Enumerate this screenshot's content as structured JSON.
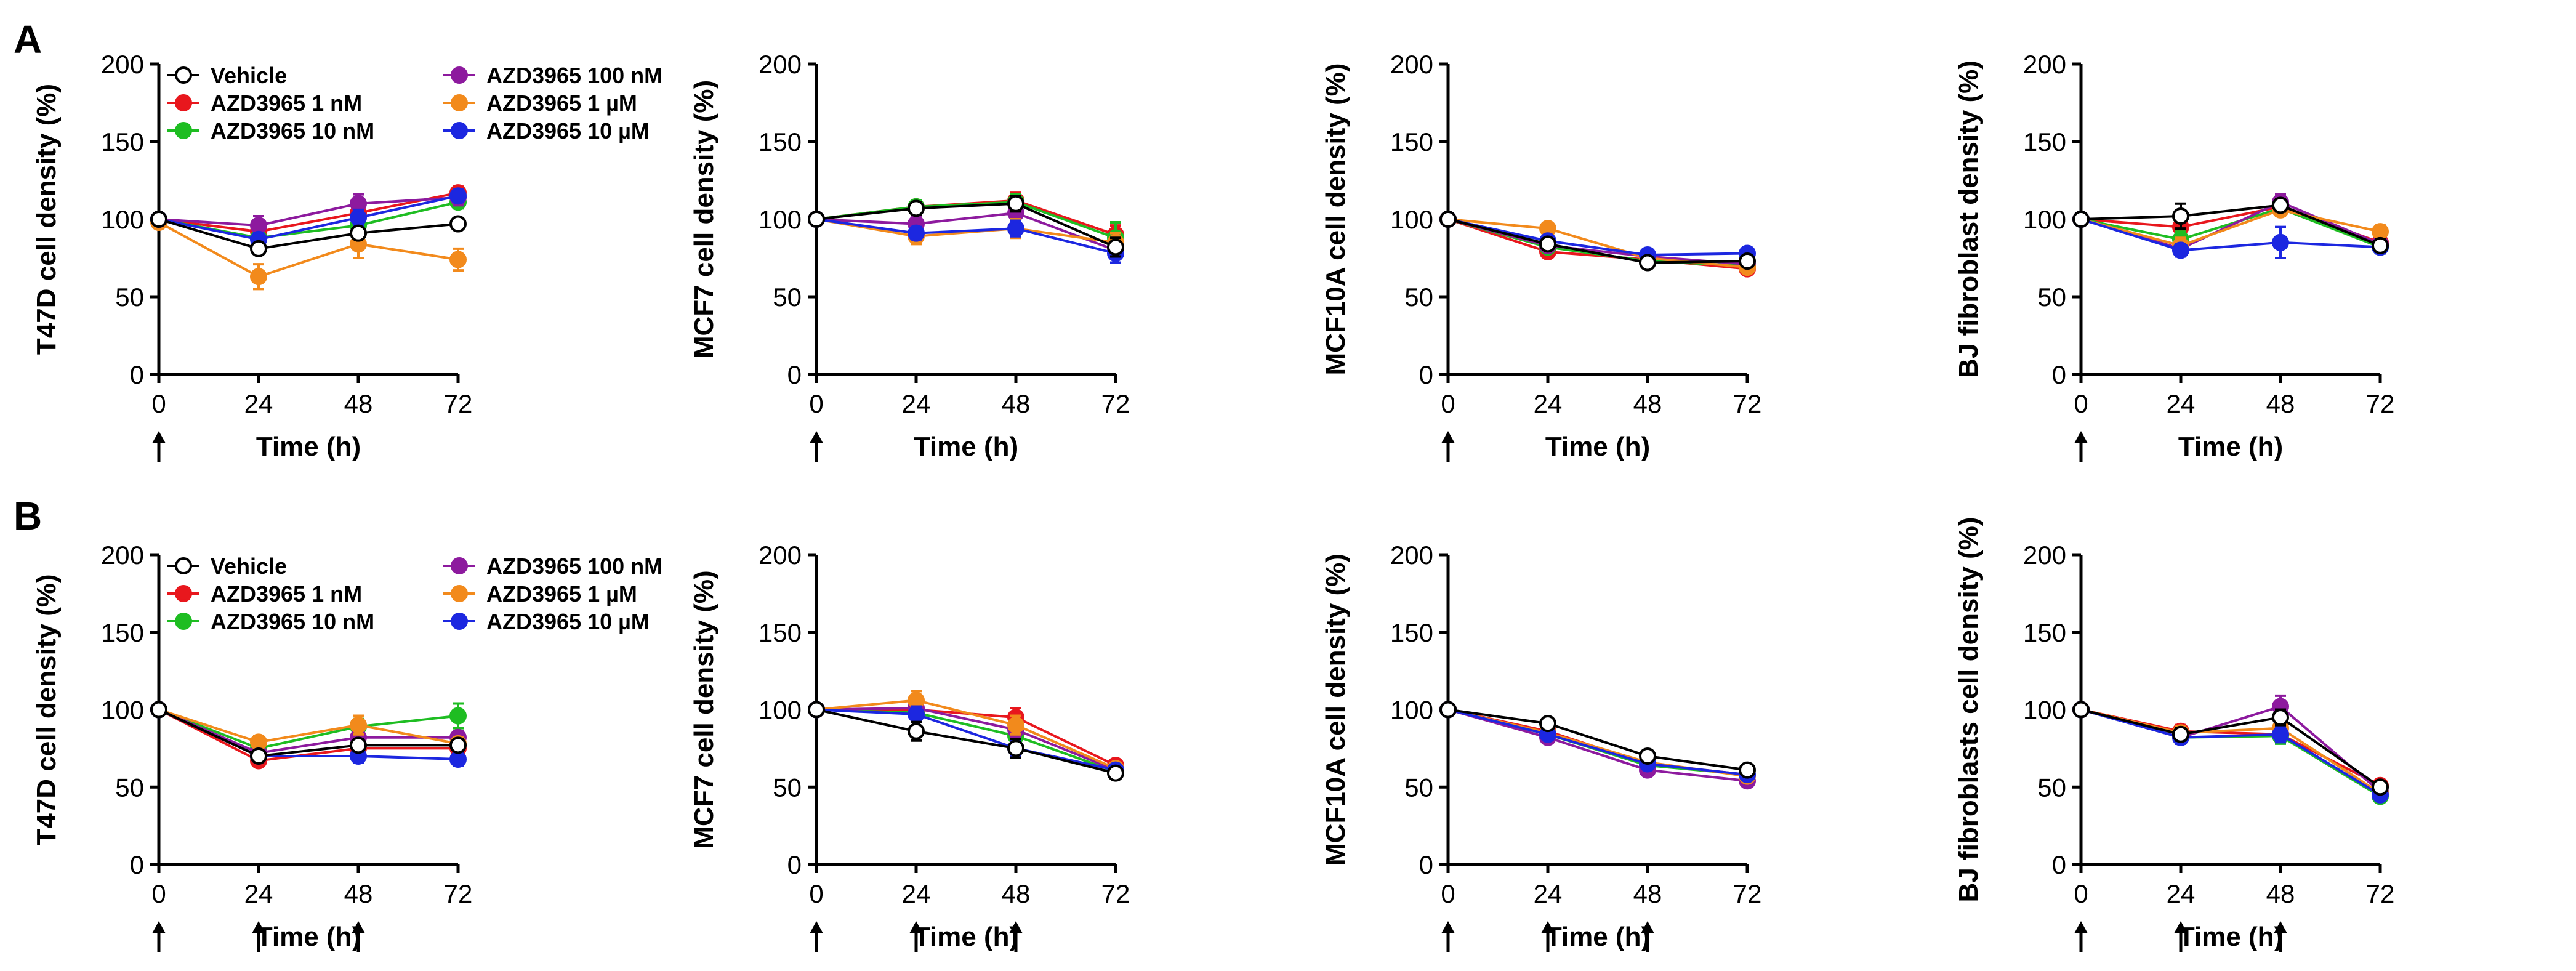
{
  "panels": [
    {
      "letter": "A"
    },
    {
      "letter": "B"
    }
  ],
  "legend": [
    {
      "name": "Vehicle",
      "color": "#ffffff",
      "stroke": "#000000"
    },
    {
      "name": "AZD3965 1 nM",
      "color": "#e8171d",
      "stroke": "#e8171d"
    },
    {
      "name": "AZD3965 10 nM",
      "color": "#1ebd22",
      "stroke": "#1ebd22"
    },
    {
      "name": "AZD3965 100 nM",
      "color": "#8d1a9e",
      "stroke": "#8d1a9e"
    },
    {
      "name": "AZD3965 1 µM",
      "color": "#f28a1c",
      "stroke": "#f28a1c"
    },
    {
      "name": "AZD3965 10 µM",
      "color": "#1c27e0",
      "stroke": "#1c27e0"
    }
  ],
  "chart_data": [
    {
      "type": "line",
      "panel": "A",
      "ylabel": "T47D cell density (%)",
      "xlabel": "Time (h)",
      "x": [
        0,
        24,
        48,
        72
      ],
      "ylim": [
        0,
        200
      ],
      "yticks": [
        0,
        50,
        100,
        150,
        200
      ],
      "arrows": [
        0
      ],
      "legend": true,
      "series": [
        {
          "name": "Vehicle",
          "values": [
            100,
            81,
            91,
            97
          ],
          "err": [
            2,
            3,
            3,
            2
          ]
        },
        {
          "name": "AZD3965 1 nM",
          "values": [
            100,
            92,
            104,
            117
          ],
          "err": [
            2,
            5,
            5,
            4
          ]
        },
        {
          "name": "AZD3965 10 nM",
          "values": [
            100,
            88,
            96,
            111
          ],
          "err": [
            2,
            4,
            5,
            4
          ]
        },
        {
          "name": "AZD3965 100 nM",
          "values": [
            100,
            96,
            110,
            114
          ],
          "err": [
            2,
            6,
            6,
            5
          ]
        },
        {
          "name": "AZD3965 1 µM",
          "values": [
            98,
            63,
            84,
            74
          ],
          "err": [
            2,
            8,
            9,
            7
          ]
        },
        {
          "name": "AZD3965 10 µM",
          "values": [
            100,
            87,
            101,
            115
          ],
          "err": [
            2,
            4,
            5,
            4
          ]
        }
      ]
    },
    {
      "type": "line",
      "panel": "A",
      "ylabel": "MCF7 cell density (%)",
      "xlabel": "Time (h)",
      "x": [
        0,
        24,
        48,
        72
      ],
      "ylim": [
        0,
        200
      ],
      "yticks": [
        0,
        50,
        100,
        150,
        200
      ],
      "arrows": [
        0
      ],
      "legend": false,
      "series": [
        {
          "name": "Vehicle",
          "values": [
            100,
            107,
            110,
            82
          ],
          "err": [
            2,
            4,
            5,
            6
          ]
        },
        {
          "name": "AZD3965 1 nM",
          "values": [
            100,
            108,
            112,
            90
          ],
          "err": [
            2,
            4,
            5,
            6
          ]
        },
        {
          "name": "AZD3965 10 nM",
          "values": [
            100,
            108,
            111,
            88
          ],
          "err": [
            2,
            4,
            5,
            10
          ]
        },
        {
          "name": "AZD3965 100 nM",
          "values": [
            100,
            97,
            104,
            80
          ],
          "err": [
            2,
            5,
            6,
            8
          ]
        },
        {
          "name": "AZD3965 1 µM",
          "values": [
            100,
            89,
            94,
            85
          ],
          "err": [
            2,
            5,
            6,
            6
          ]
        },
        {
          "name": "AZD3965 10 µM",
          "values": [
            100,
            91,
            94,
            78
          ],
          "err": [
            2,
            4,
            5,
            6
          ]
        }
      ]
    },
    {
      "type": "line",
      "panel": "A",
      "ylabel": "MCF10A cell density (%)",
      "xlabel": "Time (h)",
      "x": [
        0,
        24,
        48,
        72
      ],
      "ylim": [
        0,
        200
      ],
      "yticks": [
        0,
        50,
        100,
        150,
        200
      ],
      "arrows": [
        0
      ],
      "legend": false,
      "series": [
        {
          "name": "Vehicle",
          "values": [
            100,
            84,
            72,
            73
          ],
          "err": [
            2,
            3,
            3,
            3
          ]
        },
        {
          "name": "AZD3965 1 nM",
          "values": [
            100,
            79,
            74,
            68
          ],
          "err": [
            2,
            3,
            3,
            3
          ]
        },
        {
          "name": "AZD3965 10 nM",
          "values": [
            100,
            82,
            73,
            70
          ],
          "err": [
            2,
            3,
            3,
            3
          ]
        },
        {
          "name": "AZD3965 100 nM",
          "values": [
            100,
            83,
            76,
            71
          ],
          "err": [
            2,
            3,
            3,
            3
          ]
        },
        {
          "name": "AZD3965 1 µM",
          "values": [
            100,
            94,
            75,
            69
          ],
          "err": [
            2,
            3,
            3,
            3
          ]
        },
        {
          "name": "AZD3965 10 µM",
          "values": [
            100,
            86,
            77,
            78
          ],
          "err": [
            2,
            3,
            3,
            3
          ]
        }
      ]
    },
    {
      "type": "line",
      "panel": "A",
      "ylabel": "BJ fibroblast density (%)",
      "xlabel": "Time (h)",
      "x": [
        0,
        24,
        48,
        72
      ],
      "ylim": [
        0,
        200
      ],
      "yticks": [
        0,
        50,
        100,
        150,
        200
      ],
      "arrows": [
        0
      ],
      "legend": false,
      "series": [
        {
          "name": "Vehicle",
          "values": [
            100,
            102,
            109,
            83
          ],
          "err": [
            2,
            8,
            4,
            4
          ]
        },
        {
          "name": "AZD3965 1 nM",
          "values": [
            100,
            95,
            108,
            85
          ],
          "err": [
            2,
            5,
            4,
            4
          ]
        },
        {
          "name": "AZD3965 10 nM",
          "values": [
            100,
            87,
            107,
            82
          ],
          "err": [
            2,
            5,
            4,
            4
          ]
        },
        {
          "name": "AZD3965 100 nM",
          "values": [
            100,
            81,
            111,
            84
          ],
          "err": [
            2,
            4,
            5,
            4
          ]
        },
        {
          "name": "AZD3965 1 µM",
          "values": [
            100,
            83,
            106,
            92
          ],
          "err": [
            2,
            5,
            4,
            4
          ]
        },
        {
          "name": "AZD3965 10 µM",
          "values": [
            100,
            80,
            85,
            82
          ],
          "err": [
            2,
            4,
            10,
            4
          ]
        }
      ]
    },
    {
      "type": "line",
      "panel": "B",
      "ylabel": "T47D cell density (%)",
      "xlabel": "Time (h)",
      "x": [
        0,
        24,
        48,
        72
      ],
      "ylim": [
        0,
        200
      ],
      "yticks": [
        0,
        50,
        100,
        150,
        200
      ],
      "arrows": [
        0,
        24,
        48
      ],
      "legend": true,
      "series": [
        {
          "name": "Vehicle",
          "values": [
            100,
            70,
            77,
            77
          ],
          "err": [
            2,
            3,
            4,
            4
          ]
        },
        {
          "name": "AZD3965 1 nM",
          "values": [
            100,
            67,
            75,
            75
          ],
          "err": [
            2,
            3,
            4,
            4
          ]
        },
        {
          "name": "AZD3965 10 nM",
          "values": [
            100,
            75,
            89,
            96
          ],
          "err": [
            2,
            4,
            5,
            8
          ]
        },
        {
          "name": "AZD3965 100 nM",
          "values": [
            100,
            72,
            82,
            82
          ],
          "err": [
            2,
            4,
            4,
            4
          ]
        },
        {
          "name": "AZD3965 1 µM",
          "values": [
            100,
            79,
            90,
            78
          ],
          "err": [
            2,
            4,
            6,
            4
          ]
        },
        {
          "name": "AZD3965 10 µM",
          "values": [
            100,
            70,
            70,
            68
          ],
          "err": [
            2,
            3,
            4,
            4
          ]
        }
      ]
    },
    {
      "type": "line",
      "panel": "B",
      "ylabel": "MCF7 cell density (%)",
      "xlabel": "Time (h)",
      "x": [
        0,
        24,
        48,
        72
      ],
      "ylim": [
        0,
        200
      ],
      "yticks": [
        0,
        50,
        100,
        150,
        200
      ],
      "arrows": [
        0,
        24,
        48
      ],
      "legend": false,
      "series": [
        {
          "name": "Vehicle",
          "values": [
            100,
            86,
            75,
            59
          ],
          "err": [
            2,
            6,
            6,
            3
          ]
        },
        {
          "name": "AZD3965 1 nM",
          "values": [
            100,
            100,
            95,
            64
          ],
          "err": [
            2,
            6,
            6,
            3
          ]
        },
        {
          "name": "AZD3965 10 nM",
          "values": [
            100,
            98,
            83,
            60
          ],
          "err": [
            2,
            5,
            5,
            3
          ]
        },
        {
          "name": "AZD3965 100 nM",
          "values": [
            100,
            101,
            87,
            61
          ],
          "err": [
            2,
            5,
            5,
            3
          ]
        },
        {
          "name": "AZD3965 1 µM",
          "values": [
            100,
            106,
            90,
            62
          ],
          "err": [
            2,
            6,
            6,
            3
          ]
        },
        {
          "name": "AZD3965 10 µM",
          "values": [
            100,
            97,
            75,
            61
          ],
          "err": [
            2,
            5,
            5,
            3
          ]
        }
      ]
    },
    {
      "type": "line",
      "panel": "B",
      "ylabel": "MCF10A cell density (%)",
      "xlabel": "Time (h)",
      "x": [
        0,
        24,
        48,
        72
      ],
      "ylim": [
        0,
        200
      ],
      "yticks": [
        0,
        50,
        100,
        150,
        200
      ],
      "arrows": [
        0,
        24,
        48
      ],
      "legend": false,
      "series": [
        {
          "name": "Vehicle",
          "values": [
            100,
            91,
            70,
            61
          ],
          "err": [
            2,
            3,
            3,
            3
          ]
        },
        {
          "name": "AZD3965 1 nM",
          "values": [
            100,
            86,
            65,
            58
          ],
          "err": [
            2,
            3,
            3,
            3
          ]
        },
        {
          "name": "AZD3965 10 nM",
          "values": [
            100,
            84,
            64,
            58
          ],
          "err": [
            2,
            3,
            3,
            3
          ]
        },
        {
          "name": "AZD3965 100 nM",
          "values": [
            100,
            82,
            61,
            54
          ],
          "err": [
            2,
            3,
            3,
            3
          ]
        },
        {
          "name": "AZD3965 1 µM",
          "values": [
            100,
            85,
            66,
            57
          ],
          "err": [
            2,
            3,
            3,
            3
          ]
        },
        {
          "name": "AZD3965 10 µM",
          "values": [
            100,
            84,
            65,
            58
          ],
          "err": [
            2,
            3,
            3,
            3
          ]
        }
      ]
    },
    {
      "type": "line",
      "panel": "B",
      "ylabel": "BJ fibroblasts cell density (%)",
      "xlabel": "Time (h)",
      "x": [
        0,
        24,
        48,
        72
      ],
      "ylim": [
        0,
        200
      ],
      "yticks": [
        0,
        50,
        100,
        150,
        200
      ],
      "arrows": [
        0,
        24,
        48
      ],
      "legend": false,
      "series": [
        {
          "name": "Vehicle",
          "values": [
            100,
            84,
            95,
            50
          ],
          "err": [
            2,
            4,
            5,
            3
          ]
        },
        {
          "name": "AZD3965 1 nM",
          "values": [
            100,
            86,
            84,
            51
          ],
          "err": [
            2,
            4,
            5,
            3
          ]
        },
        {
          "name": "AZD3965 10 nM",
          "values": [
            100,
            82,
            83,
            44
          ],
          "err": [
            2,
            4,
            5,
            3
          ]
        },
        {
          "name": "AZD3965 100 nM",
          "values": [
            100,
            82,
            102,
            47
          ],
          "err": [
            2,
            4,
            7,
            3
          ]
        },
        {
          "name": "AZD3965 1 µM",
          "values": [
            100,
            85,
            88,
            46
          ],
          "err": [
            2,
            4,
            8,
            3
          ]
        },
        {
          "name": "AZD3965 10 µM",
          "values": [
            100,
            82,
            84,
            45
          ],
          "err": [
            2,
            4,
            5,
            3
          ]
        }
      ]
    }
  ]
}
